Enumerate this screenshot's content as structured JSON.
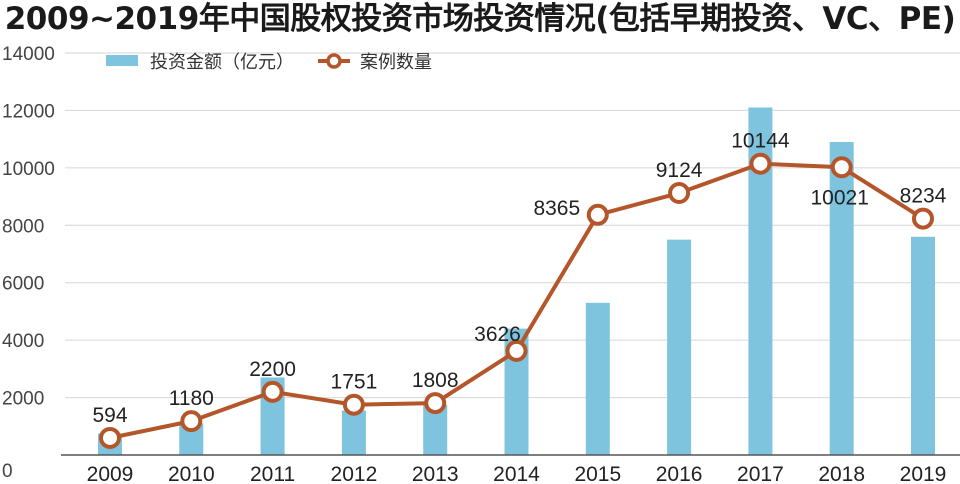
{
  "title": "2009~2019年中国股权投资市场投资情况(包括早期投资、VC、PE)",
  "colors": {
    "bar": "#7ec4de",
    "line": "#b4562a",
    "axis": "#555555"
  },
  "chart_data": {
    "type": "bar+line",
    "title": "2009~2019年中国股权投资市场投资情况(包括早期投资、VC、PE)",
    "categories": [
      "2009",
      "2010",
      "2011",
      "2012",
      "2013",
      "2014",
      "2015",
      "2016",
      "2017",
      "2018",
      "2019"
    ],
    "ylim": [
      0,
      14000
    ],
    "yticks": [
      0,
      2000,
      4000,
      6000,
      8000,
      10000,
      12000,
      14000
    ],
    "legend_position": "top-left",
    "series": [
      {
        "name": "投资金额（亿元）",
        "type": "bar",
        "values": [
          750,
          1100,
          2700,
          1550,
          1750,
          4400,
          5300,
          7500,
          12100,
          10900,
          7600
        ]
      },
      {
        "name": "案例数量",
        "type": "line",
        "values": [
          594,
          1180,
          2200,
          1751,
          1808,
          3626,
          8365,
          9124,
          10144,
          10021,
          8234
        ],
        "labels": [
          "594",
          "1180",
          "2200",
          "1751",
          "1808",
          "3626",
          "8365",
          "9124",
          "10144",
          "10021",
          "8234"
        ]
      }
    ]
  }
}
